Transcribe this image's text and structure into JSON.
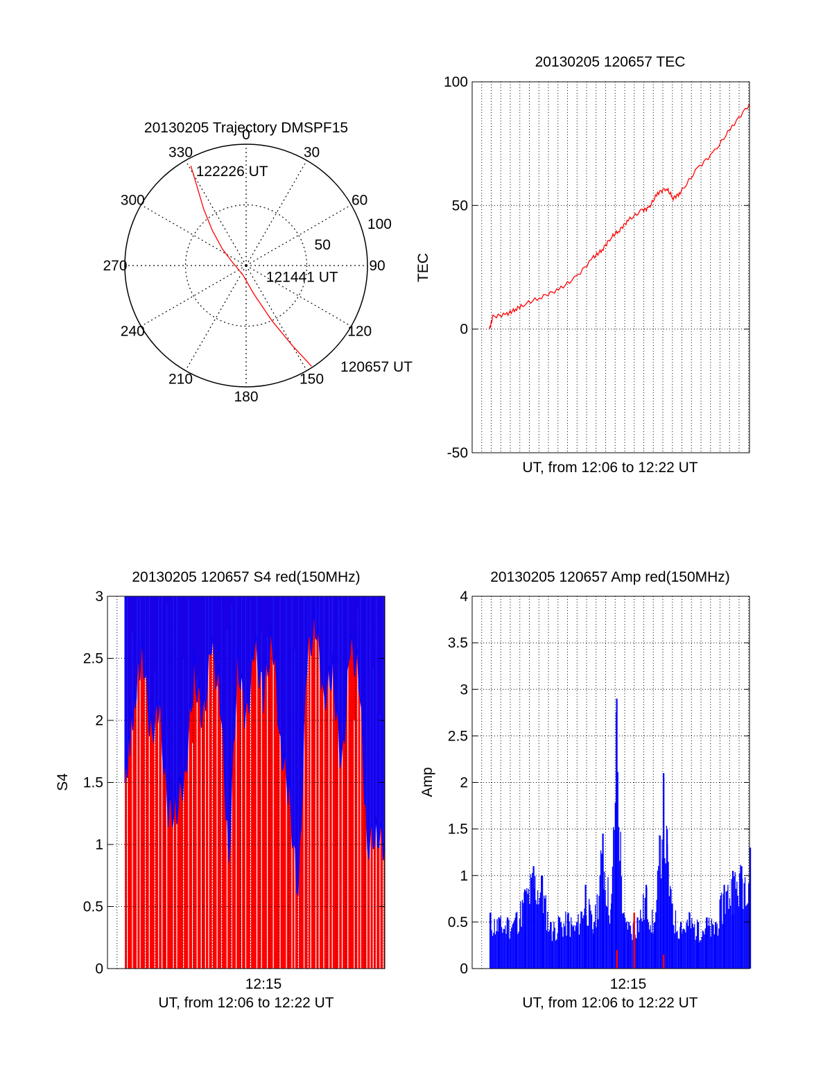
{
  "chart_data": [
    {
      "id": "trajectory",
      "type": "polar",
      "title": "20130205 Trajectory DMSPF15",
      "angle_labels": [
        "0",
        "30",
        "60",
        "90",
        "120",
        "150",
        "180",
        "210",
        "240",
        "270",
        "300",
        "330"
      ],
      "radius_labels": [
        "50",
        "100"
      ],
      "rlim": [
        0,
        100
      ],
      "track": [
        {
          "az": 331,
          "r": 94
        },
        {
          "az": 328,
          "r": 76
        },
        {
          "az": 323,
          "r": 58
        },
        {
          "az": 316,
          "r": 40
        },
        {
          "az": 305,
          "r": 24
        },
        {
          "az": 285,
          "r": 12
        },
        {
          "az": 200,
          "r": 8
        },
        {
          "az": 165,
          "r": 24
        },
        {
          "az": 155,
          "r": 50
        },
        {
          "az": 150,
          "r": 76
        },
        {
          "az": 147,
          "r": 99
        }
      ],
      "annotations": [
        {
          "text": "122226 UT",
          "az": 332,
          "r": 88
        },
        {
          "text": "121441 UT",
          "az": 120,
          "r": 19
        },
        {
          "text": "120657 UT",
          "az": 137,
          "r": 114
        }
      ],
      "line_color": "#ff0000",
      "grid": "dotted"
    },
    {
      "id": "tec",
      "type": "line",
      "title": "20130205 120657 TEC",
      "ylabel": "TEC",
      "xlabel": "UT, from 12:06 to 12:22 UT",
      "ylim": [
        -50,
        100
      ],
      "yticks": [
        "-50",
        "0",
        "50",
        "100"
      ],
      "xlim_min": [
        6.0,
        22.0
      ],
      "series": [
        {
          "color": "#ff0000",
          "x": [
            7.0,
            7.2,
            8.0,
            8.5,
            9.0,
            10.0,
            11.0,
            12.0,
            13.0,
            13.5,
            14.0,
            14.5,
            15.0,
            15.8,
            16.2,
            16.7,
            17.2,
            17.6,
            18.0,
            19.0,
            20.0,
            21.0,
            22.0
          ],
          "y": [
            0,
            5,
            6,
            8,
            10,
            13,
            16,
            21,
            29,
            32,
            37,
            40,
            44,
            48,
            49,
            55,
            57,
            53,
            55,
            65,
            72,
            82,
            91
          ]
        }
      ],
      "grid": "dotted"
    },
    {
      "id": "s4",
      "type": "bar",
      "title": "20130205 120657 S4 red(150MHz)",
      "ylabel": "S4",
      "xlabel": "UT, from 12:06 to 12:22 UT",
      "ylim": [
        0,
        3
      ],
      "yticks": [
        "0",
        "0.5",
        "1",
        "1.5",
        "2",
        "2.5",
        "3"
      ],
      "xtick_labels": [
        {
          "x": 15.0,
          "label": "12:15"
        }
      ],
      "xlim_min": [
        6.0,
        22.0
      ],
      "series": [
        {
          "name": "",
          "color": "#0000ff",
          "x": [
            7.0,
            7.3,
            7.6,
            8.0,
            8.5,
            9.0,
            9.5,
            10.0,
            10.5,
            11.0,
            11.5,
            12.0,
            12.5,
            13.0,
            13.5,
            14.0,
            14.5,
            15.0,
            15.5,
            16.0,
            16.5,
            17.0,
            17.5,
            18.0,
            18.5,
            19.0,
            19.5,
            20.0,
            20.5,
            21.0,
            21.5,
            22.0
          ],
          "y": [
            1.5,
            1.85,
            2.2,
            2.6,
            1.9,
            2.1,
            1.25,
            1.3,
            1.6,
            2.4,
            2.0,
            2.6,
            2.2,
            0.9,
            2.5,
            2.0,
            2.6,
            2.2,
            2.7,
            1.8,
            1.4,
            0.55,
            2.5,
            2.8,
            2.2,
            2.4,
            1.6,
            2.6,
            2.4,
            1.0,
            1.1,
            1.0
          ]
        },
        {
          "name": "",
          "color": "#ff0000",
          "note_fill": "dense vertical red bars reaching 3 across the whole interval",
          "y_level": 3
        }
      ],
      "grid": "dotted"
    },
    {
      "id": "amp",
      "type": "bar",
      "title": "20130205 120657 Amp red(150MHz)",
      "ylabel": "Amp",
      "xlabel": "UT, from 12:06 to 12:22 UT",
      "ylim": [
        0,
        4
      ],
      "yticks": [
        "0",
        "0.5",
        "1",
        "1.5",
        "2",
        "2.5",
        "3",
        "3.5",
        "4"
      ],
      "xtick_labels": [
        {
          "x": 15.0,
          "label": "12:15"
        }
      ],
      "xlim_min": [
        6.0,
        22.0
      ],
      "series": [
        {
          "color": "#0000ff",
          "x": [
            7.0,
            7.5,
            8.0,
            8.5,
            9.0,
            9.5,
            10.0,
            10.5,
            11.0,
            11.5,
            12.0,
            12.5,
            13.0,
            13.5,
            14.0,
            14.3,
            14.7,
            15.0,
            15.5,
            16.0,
            16.5,
            17.0,
            17.2,
            17.5,
            18.0,
            18.5,
            19.0,
            19.5,
            20.0,
            20.5,
            21.0,
            21.5,
            22.0
          ],
          "y": [
            0.6,
            0.55,
            0.55,
            0.6,
            0.85,
            1.1,
            1.0,
            0.5,
            0.55,
            0.6,
            0.5,
            0.9,
            0.5,
            1.45,
            0.7,
            2.9,
            0.6,
            0.5,
            0.55,
            0.9,
            0.5,
            2.1,
            1.5,
            0.7,
            0.5,
            0.6,
            0.5,
            0.55,
            0.5,
            0.9,
            1.05,
            1.1,
            1.3
          ]
        },
        {
          "color": "#ff0000",
          "x": [
            14.3,
            15.3,
            17.0
          ],
          "y": [
            0.2,
            0.6,
            0.15
          ]
        }
      ],
      "grid": "dotted"
    }
  ]
}
